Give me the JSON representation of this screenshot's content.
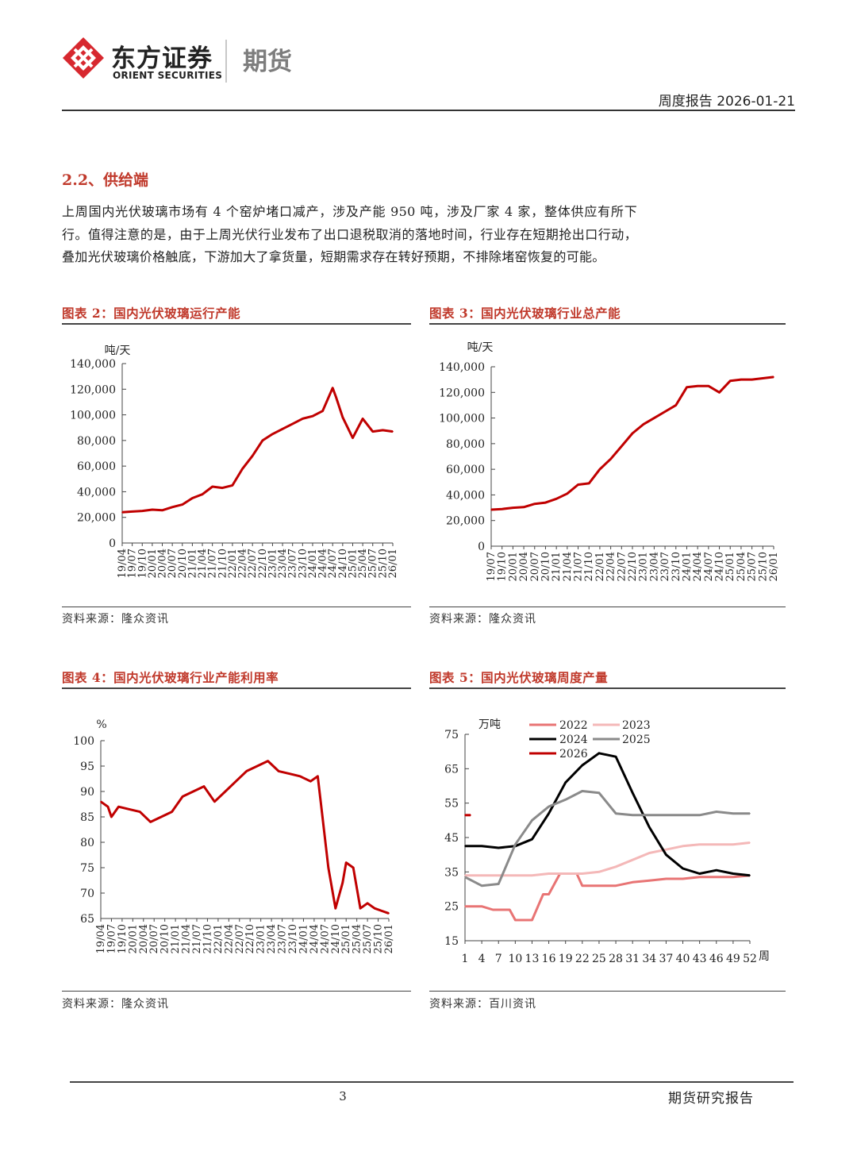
{
  "header": {
    "brand_cn": "东方证券",
    "brand_en": "ORIENT SECURITIES",
    "section": "期货",
    "report_type": "周度报告 2026-01-21",
    "brand_color": "#d7282f"
  },
  "section": {
    "title": "2.2、供给端",
    "body": "上周国内光伏玻璃市场有 4 个窑炉堵口减产，涉及产能 950 吨，涉及厂家 4 家，整体供应有所下行。值得注意的是，由于上周光伏行业发布了出口退税取消的落地时间，行业存在短期抢出口行动，叠加光伏玻璃价格触底，下游加大了拿货量，短期需求存在转好预期，不排除堵窑恢复的可能。"
  },
  "figures": [
    {
      "title": "图表 2：国内光伏玻璃运行产能",
      "source": "资料来源：隆众资讯"
    },
    {
      "title": "图表 3：国内光伏玻璃行业总产能",
      "source": "资料来源：隆众资讯"
    },
    {
      "title": "图表 4：国内光伏玻璃行业产能利用率",
      "source": "资料来源：隆众资讯"
    },
    {
      "title": "图表 5：国内光伏玻璃周度产量",
      "source": "资料来源：百川资讯"
    }
  ],
  "chart_data": [
    {
      "type": "line",
      "unit": "吨/天",
      "ylim": [
        0,
        140000
      ],
      "yticks": [
        "140,000",
        "120,000",
        "100,000",
        "80,000",
        "60,000",
        "40,000",
        "20,000",
        "0"
      ],
      "xticks": [
        "19/04",
        "19/07",
        "19/10",
        "20/01",
        "20/04",
        "20/07",
        "20/10",
        "21/01",
        "21/04",
        "21/07",
        "21/10",
        "22/01",
        "22/04",
        "22/07",
        "22/10",
        "23/01",
        "23/04",
        "23/07",
        "23/10",
        "24/01",
        "24/04",
        "24/07",
        "24/10",
        "25/01",
        "25/04",
        "25/07",
        "25/10",
        "26/01"
      ],
      "color": "#c00000",
      "x": [
        0,
        3,
        6,
        9,
        12,
        15,
        18,
        21,
        24,
        27,
        30,
        33,
        36,
        39,
        42,
        45,
        48,
        51,
        54,
        57,
        60,
        63,
        64,
        66,
        69,
        72,
        75,
        78,
        81
      ],
      "values": [
        24000,
        24500,
        25000,
        26000,
        25500,
        28000,
        30000,
        35000,
        38000,
        44000,
        43000,
        45000,
        58000,
        68000,
        80000,
        85000,
        89000,
        93000,
        97000,
        99000,
        103000,
        121000,
        114000,
        98000,
        82000,
        97000,
        87000,
        88000,
        87000
      ]
    },
    {
      "type": "line",
      "unit": "吨/天",
      "ylim": [
        0,
        140000
      ],
      "yticks": [
        "140,000",
        "120,000",
        "100,000",
        "80,000",
        "60,000",
        "40,000",
        "20,000",
        "0"
      ],
      "xticks": [
        "19/07",
        "19/10",
        "20/01",
        "20/04",
        "20/07",
        "20/10",
        "21/01",
        "21/04",
        "21/07",
        "21/10",
        "22/01",
        "22/04",
        "22/07",
        "22/10",
        "23/01",
        "23/04",
        "23/07",
        "23/10",
        "24/01",
        "24/04",
        "24/07",
        "24/10",
        "25/01",
        "25/04",
        "25/07",
        "25/10",
        "26/01"
      ],
      "color": "#c00000",
      "x": [
        0,
        3,
        6,
        9,
        12,
        15,
        18,
        21,
        24,
        27,
        30,
        33,
        36,
        39,
        42,
        45,
        48,
        51,
        54,
        57,
        60,
        63,
        66,
        69,
        72,
        75,
        78
      ],
      "values": [
        28500,
        29000,
        30000,
        30500,
        33000,
        34000,
        37000,
        41000,
        48000,
        49000,
        60000,
        68000,
        78000,
        88000,
        95000,
        100000,
        105000,
        110000,
        124000,
        125000,
        125000,
        120000,
        129000,
        130000,
        130000,
        131000,
        132000
      ]
    },
    {
      "type": "line",
      "unit": "%",
      "ylim": [
        65,
        100
      ],
      "yticks": [
        "100",
        "95",
        "90",
        "85",
        "80",
        "75",
        "70",
        "65"
      ],
      "xticks": [
        "19/04",
        "19/07",
        "19/10",
        "20/01",
        "20/04",
        "20/07",
        "20/10",
        "21/01",
        "21/04",
        "21/07",
        "21/10",
        "22/01",
        "22/04",
        "22/07",
        "22/10",
        "23/01",
        "23/04",
        "23/07",
        "23/10",
        "24/01",
        "24/04",
        "24/07",
        "24/10",
        "25/01",
        "25/04",
        "25/07",
        "25/10",
        "26/01"
      ],
      "color": "#c00000",
      "x": [
        0,
        2,
        3,
        5,
        8,
        11,
        14,
        17,
        20,
        23,
        26,
        29,
        32,
        35,
        38,
        41,
        44,
        47,
        50,
        53,
        56,
        59,
        61,
        62,
        64,
        66,
        68,
        69,
        71,
        73,
        75,
        77,
        79,
        81
      ],
      "values": [
        88,
        87,
        85,
        87,
        86.5,
        86,
        84,
        85,
        86,
        89,
        90,
        91,
        88,
        90,
        92,
        94,
        95,
        96,
        94,
        93.5,
        93,
        92,
        93,
        87,
        75,
        67,
        72,
        76,
        75,
        67,
        68,
        67,
        66.5,
        66
      ]
    },
    {
      "type": "line",
      "unit": "万吨",
      "xlabel": "周",
      "ylim": [
        15,
        75
      ],
      "yticks": [
        "75",
        "65",
        "55",
        "45",
        "35",
        "25",
        "15"
      ],
      "xticks": [
        "1",
        "4",
        "7",
        "10",
        "13",
        "16",
        "19",
        "22",
        "25",
        "28",
        "31",
        "34",
        "37",
        "40",
        "43",
        "46",
        "49",
        "52"
      ],
      "series": [
        {
          "name": "2022",
          "color": "#e87474",
          "x": [
            1,
            4,
            6,
            9,
            10,
            12,
            13,
            15,
            16,
            18,
            19,
            21,
            22,
            25,
            28,
            31,
            34,
            37,
            40,
            43,
            46,
            49,
            52
          ],
          "values": [
            25,
            25,
            24,
            24,
            21,
            21,
            21,
            28.5,
            28.5,
            34.5,
            34.5,
            34.5,
            31,
            31,
            31,
            32,
            32.5,
            33,
            33,
            33.5,
            33.5,
            33.5,
            34
          ]
        },
        {
          "name": "2023",
          "color": "#f4b8b8",
          "x": [
            1,
            4,
            7,
            10,
            13,
            16,
            19,
            22,
            25,
            28,
            31,
            34,
            37,
            40,
            43,
            46,
            49,
            52
          ],
          "values": [
            34,
            34,
            34,
            34,
            34,
            34.5,
            34.5,
            34.5,
            35,
            36.5,
            38.5,
            40.5,
            41.5,
            42.5,
            43,
            43,
            43,
            43.5
          ]
        },
        {
          "name": "2024",
          "color": "#000000",
          "x": [
            1,
            4,
            7,
            10,
            13,
            16,
            19,
            22,
            25,
            28,
            31,
            34,
            37,
            40,
            43,
            46,
            49,
            52
          ],
          "values": [
            42.5,
            42.5,
            42,
            42.5,
            44.5,
            52,
            61,
            66,
            69.5,
            68.5,
            58,
            48,
            40,
            36,
            34.5,
            35.5,
            34.5,
            34
          ]
        },
        {
          "name": "2025",
          "color": "#8a8a8a",
          "x": [
            1,
            4,
            7,
            10,
            13,
            16,
            19,
            22,
            25,
            28,
            31,
            34,
            37,
            40,
            43,
            46,
            49,
            52
          ],
          "values": [
            33.5,
            31,
            31.5,
            43,
            50,
            54,
            56,
            58.5,
            58,
            52,
            51.5,
            51.5,
            51.5,
            51.5,
            51.5,
            52.5,
            52,
            52
          ]
        },
        {
          "name": "2026",
          "color": "#c00000",
          "x": [
            1,
            2
          ],
          "values": [
            51.5,
            51.5
          ]
        }
      ]
    }
  ],
  "footer": {
    "page": "3",
    "label": "期货研究报告"
  }
}
